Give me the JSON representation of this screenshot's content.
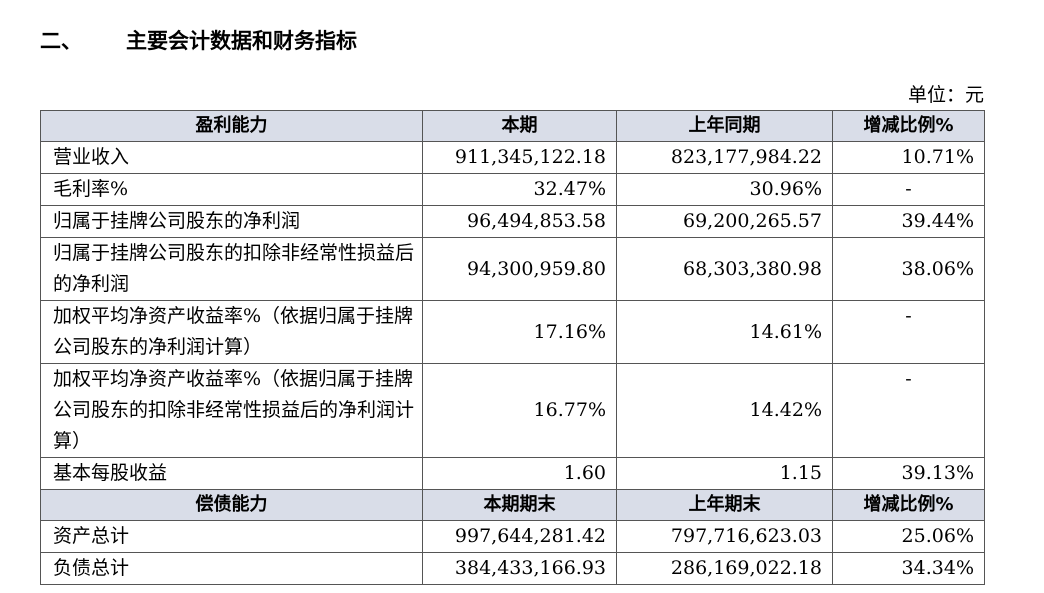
{
  "heading": {
    "number": "二、",
    "title": "主要会计数据和财务指标"
  },
  "unit": "单位：元",
  "profit": {
    "headers": [
      "盈利能力",
      "本期",
      "上年同期",
      "增减比例%"
    ],
    "rows": [
      {
        "label": "营业收入",
        "current": "911,345,122.18",
        "previous": "823,177,984.22",
        "change": "10.71%"
      },
      {
        "label": "毛利率%",
        "current": "32.47%",
        "previous": "30.96%",
        "change": "-"
      },
      {
        "label": "归属于挂牌公司股东的净利润",
        "current": "96,494,853.58",
        "previous": "69,200,265.57",
        "change": "39.44%"
      },
      {
        "label": "归属于挂牌公司股东的扣除非经常性损益后的净利润",
        "current": "94,300,959.80",
        "previous": "68,303,380.98",
        "change": "38.06%"
      },
      {
        "label": "加权平均净资产收益率%（依据归属于挂牌公司股东的净利润计算）",
        "current": "17.16%",
        "previous": "14.61%",
        "change": "-"
      },
      {
        "label": "加权平均净资产收益率%（依据归属于挂牌公司股东的扣除非经常性损益后的净利润计算）",
        "current": "16.77%",
        "previous": "14.42%",
        "change": "-"
      },
      {
        "label": "基本每股收益",
        "current": "1.60",
        "previous": "1.15",
        "change": "39.13%"
      }
    ]
  },
  "solvency": {
    "headers": [
      "偿债能力",
      "本期期末",
      "上年期末",
      "增减比例%"
    ],
    "rows": [
      {
        "label": "资产总计",
        "current": "997,644,281.42",
        "previous": "797,716,623.03",
        "change": "25.06%"
      },
      {
        "label": "负债总计",
        "current": "384,433,166.93",
        "previous": "286,169,022.18",
        "change": "34.34%"
      }
    ]
  }
}
